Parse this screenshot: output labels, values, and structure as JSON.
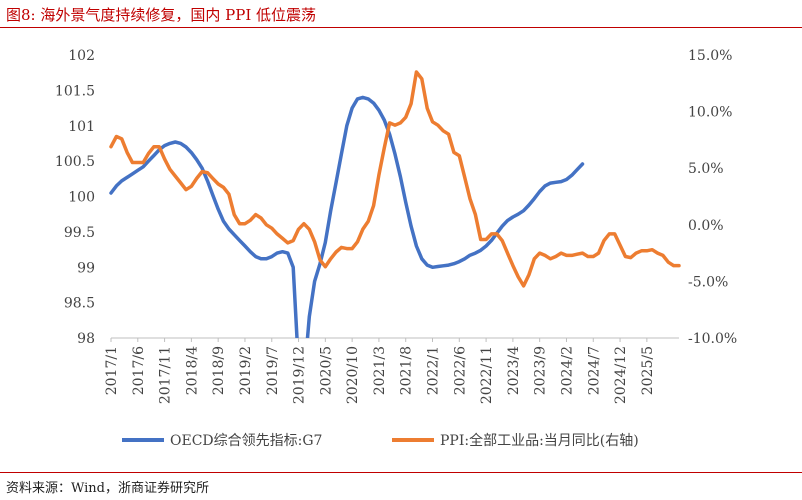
{
  "page": {
    "title": "图8:  海外景气度持续修复，国内 PPI 低位震荡",
    "source": "资料来源：Wind，浙商证券研究所"
  },
  "chart_data": {
    "type": "line",
    "title": "",
    "x_start": "2017-01",
    "x_tick_labels": [
      "2017/1",
      "2017/6",
      "2017/11",
      "2018/4",
      "2018/9",
      "2019/2",
      "2019/7",
      "2019/12",
      "2020/5",
      "2020/10",
      "2021/3",
      "2021/8",
      "2022/1",
      "2022/6",
      "2022/11",
      "2023/4",
      "2023/9",
      "2024/2",
      "2024/7",
      "2024/12",
      "2025/5"
    ],
    "left_axis": {
      "ylim": [
        98,
        102
      ],
      "ticks": [
        "98",
        "98.5",
        "99",
        "99.5",
        "100",
        "100.5",
        "101",
        "101.5",
        "102"
      ]
    },
    "right_axis": {
      "ylim": [
        -10,
        15
      ],
      "ticks": [
        "-10.0%",
        "-5.0%",
        "0.0%",
        "5.0%",
        "10.0%",
        "15.0%"
      ]
    },
    "legend_position": "bottom",
    "series": [
      {
        "name": "OECD综合领先指标:G7",
        "axis": "left",
        "color": "#4472c4",
        "values": [
          100.05,
          100.15,
          100.22,
          100.27,
          100.32,
          100.37,
          100.42,
          100.5,
          100.58,
          100.66,
          100.72,
          100.75,
          100.77,
          100.75,
          100.7,
          100.62,
          100.52,
          100.4,
          100.22,
          100.02,
          99.82,
          99.65,
          99.54,
          99.46,
          99.38,
          99.3,
          99.22,
          99.15,
          99.12,
          99.12,
          99.15,
          99.2,
          99.22,
          99.2,
          99.0,
          97.6,
          97.4,
          98.3,
          98.8,
          99.05,
          99.35,
          99.8,
          100.2,
          100.6,
          101.0,
          101.25,
          101.38,
          101.4,
          101.38,
          101.32,
          101.22,
          101.08,
          100.88,
          100.6,
          100.28,
          99.92,
          99.58,
          99.3,
          99.12,
          99.03,
          99.0,
          99.01,
          99.02,
          99.03,
          99.05,
          99.08,
          99.12,
          99.17,
          99.2,
          99.24,
          99.3,
          99.38,
          99.48,
          99.58,
          99.66,
          99.71,
          99.75,
          99.8,
          99.88,
          99.97,
          100.07,
          100.15,
          100.19,
          100.2,
          100.21,
          100.24,
          100.3,
          100.38,
          100.46
        ]
      },
      {
        "name": "PPI:全部工业品:当月同比(右轴)",
        "axis": "right",
        "color": "#ed7d31",
        "values": [
          6.9,
          7.8,
          7.6,
          6.4,
          5.5,
          5.5,
          5.5,
          6.3,
          6.9,
          6.9,
          5.8,
          4.9,
          4.3,
          3.7,
          3.1,
          3.4,
          4.1,
          4.7,
          4.6,
          4.1,
          3.6,
          3.3,
          2.7,
          0.9,
          0.1,
          0.1,
          0.4,
          0.9,
          0.6,
          0.0,
          -0.3,
          -0.8,
          -1.2,
          -1.6,
          -1.4,
          -0.4,
          0.1,
          -0.4,
          -1.5,
          -3.1,
          -3.7,
          -3.0,
          -2.4,
          -2.0,
          -2.1,
          -2.1,
          -1.5,
          -0.4,
          0.3,
          1.7,
          4.4,
          6.8,
          9.0,
          8.8,
          9.0,
          9.5,
          10.7,
          13.5,
          12.9,
          10.3,
          9.1,
          8.8,
          8.3,
          8.0,
          6.4,
          6.1,
          4.2,
          2.3,
          0.9,
          -1.3,
          -1.3,
          -0.8,
          -0.8,
          -1.4,
          -2.5,
          -3.6,
          -4.6,
          -5.4,
          -4.4,
          -3.0,
          -2.5,
          -2.7,
          -3.0,
          -2.8,
          -2.5,
          -2.7,
          -2.7,
          -2.6,
          -2.5,
          -2.8,
          -2.8,
          -2.5,
          -1.4,
          -0.8,
          -0.8,
          -1.8,
          -2.8,
          -2.9,
          -2.5,
          -2.3,
          -2.3,
          -2.2,
          -2.5,
          -2.7,
          -3.3,
          -3.6,
          -3.6
        ]
      }
    ]
  }
}
